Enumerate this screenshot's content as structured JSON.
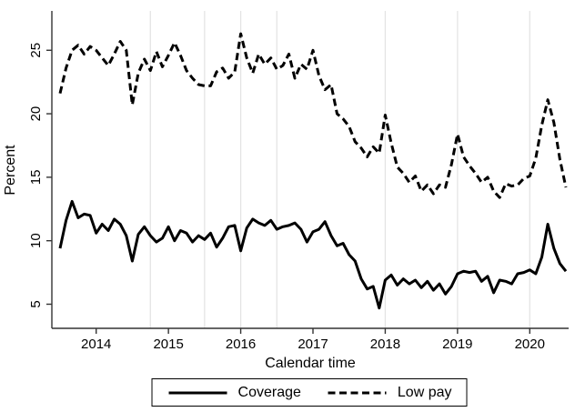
{
  "chart_data": {
    "type": "line",
    "title": "",
    "xlabel": "Calendar time",
    "ylabel": "Percent",
    "x_frequency": "monthly",
    "x": [
      "2013m7",
      "2013m8",
      "2013m9",
      "2013m10",
      "2013m11",
      "2013m12",
      "2014m1",
      "2014m2",
      "2014m3",
      "2014m4",
      "2014m5",
      "2014m6",
      "2014m7",
      "2014m8",
      "2014m9",
      "2014m10",
      "2014m11",
      "2014m12",
      "2015m1",
      "2015m2",
      "2015m3",
      "2015m4",
      "2015m5",
      "2015m6",
      "2015m7",
      "2015m8",
      "2015m9",
      "2015m10",
      "2015m11",
      "2015m12",
      "2016m1",
      "2016m2",
      "2016m3",
      "2016m4",
      "2016m5",
      "2016m6",
      "2016m7",
      "2016m8",
      "2016m9",
      "2016m10",
      "2016m11",
      "2016m12",
      "2017m1",
      "2017m2",
      "2017m3",
      "2017m4",
      "2017m5",
      "2017m6",
      "2017m7",
      "2017m8",
      "2017m9",
      "2017m10",
      "2017m11",
      "2017m12",
      "2018m1",
      "2018m2",
      "2018m3",
      "2018m4",
      "2018m5",
      "2018m6",
      "2018m7",
      "2018m8",
      "2018m9",
      "2018m10",
      "2018m11",
      "2018m12",
      "2019m1",
      "2019m2",
      "2019m3",
      "2019m4",
      "2019m5",
      "2019m6",
      "2019m7",
      "2019m8",
      "2019m9",
      "2019m10",
      "2019m11",
      "2019m12",
      "2020m1",
      "2020m2",
      "2020m3",
      "2020m4",
      "2020m5",
      "2020m6",
      "2020m7"
    ],
    "series": [
      {
        "name": "Coverage",
        "style": "solid",
        "color": "#000000",
        "values": [
          9.4,
          11.6,
          13.1,
          11.8,
          12.1,
          12.0,
          10.6,
          11.3,
          10.8,
          11.7,
          11.3,
          10.4,
          8.4,
          10.5,
          11.1,
          10.4,
          9.9,
          10.2,
          11.1,
          10.0,
          10.8,
          10.6,
          9.9,
          10.4,
          10.1,
          10.6,
          9.5,
          10.2,
          11.1,
          11.2,
          9.2,
          11.0,
          11.7,
          11.4,
          11.2,
          11.6,
          10.9,
          11.1,
          11.2,
          11.4,
          10.9,
          9.9,
          10.7,
          10.9,
          11.5,
          10.4,
          9.6,
          9.8,
          8.9,
          8.4,
          7.0,
          6.2,
          6.4,
          4.7,
          6.9,
          7.3,
          6.5,
          7.0,
          6.6,
          6.9,
          6.3,
          6.8,
          6.1,
          6.6,
          5.8,
          6.4,
          7.4,
          7.6,
          7.5,
          7.6,
          6.8,
          7.2,
          5.9,
          6.9,
          6.8,
          6.6,
          7.4,
          7.5,
          7.7,
          7.4,
          8.7,
          11.3,
          9.4,
          8.2,
          7.6
        ]
      },
      {
        "name": "Low pay",
        "style": "dashed",
        "color": "#000000",
        "values": [
          21.6,
          23.6,
          25.0,
          25.4,
          24.7,
          25.3,
          25.0,
          24.4,
          23.8,
          24.7,
          25.7,
          25.0,
          20.7,
          23.2,
          24.3,
          23.4,
          24.9,
          23.7,
          24.6,
          25.6,
          24.6,
          23.4,
          22.8,
          22.3,
          22.2,
          22.2,
          23.3,
          23.6,
          22.8,
          23.3,
          26.3,
          24.4,
          23.2,
          24.7,
          23.9,
          24.4,
          23.5,
          23.8,
          24.7,
          22.8,
          23.9,
          23.5,
          25.0,
          23.0,
          21.9,
          22.3,
          20.0,
          19.6,
          19.0,
          17.8,
          17.3,
          16.6,
          17.4,
          16.9,
          19.9,
          17.7,
          15.8,
          15.3,
          14.6,
          15.1,
          13.9,
          14.4,
          13.7,
          14.4,
          14.2,
          16.0,
          18.4,
          16.6,
          15.9,
          15.3,
          14.6,
          15.0,
          13.9,
          13.4,
          14.5,
          14.3,
          14.4,
          14.9,
          15.1,
          16.5,
          19.1,
          21.1,
          19.3,
          16.4,
          14.2
        ]
      }
    ],
    "yticks": [
      5,
      10,
      15,
      20,
      25
    ],
    "ylim": [
      3.1,
      28.1
    ],
    "xticks": [
      {
        "label": "2014",
        "month": "2014m1"
      },
      {
        "label": "2015",
        "month": "2015m1"
      },
      {
        "label": "2016",
        "month": "2016m1"
      },
      {
        "label": "2017",
        "month": "2017m1"
      },
      {
        "label": "2018",
        "month": "2018m1"
      },
      {
        "label": "2019",
        "month": "2019m1"
      },
      {
        "label": "2020",
        "month": "2020m1"
      }
    ],
    "gridlines": [
      "2014m10",
      "2015m7",
      "2016m1",
      "2016m7",
      "2018m1",
      "2019m1",
      "2020m1"
    ],
    "grid": "vertical-only",
    "legend_position": "bottom-center-boxed",
    "colors": {
      "line": "#000000",
      "gridline": "#e4e4e4",
      "axis": "#333333"
    }
  },
  "legend": {
    "coverage_label": "Coverage",
    "low_pay_label": "Low pay"
  }
}
